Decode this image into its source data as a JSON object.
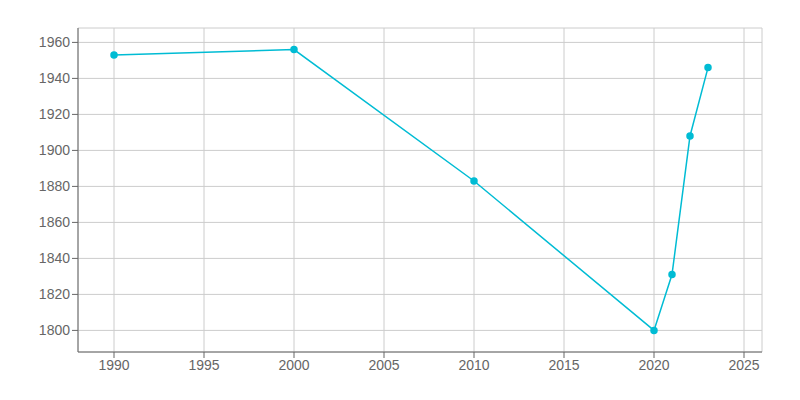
{
  "chart_data": {
    "type": "line",
    "x": [
      1990,
      2000,
      2010,
      2020,
      2021,
      2022,
      2023
    ],
    "values": [
      1953,
      1956,
      1883,
      1800,
      1831,
      1908,
      1946
    ],
    "color": "#00BCD4",
    "marker": "circle",
    "xlim": [
      1988,
      2026
    ],
    "ylim": [
      1788,
      1968
    ],
    "xticks": [
      1990,
      1995,
      2000,
      2005,
      2010,
      2015,
      2020,
      2025
    ],
    "yticks": [
      1800,
      1820,
      1840,
      1860,
      1880,
      1900,
      1920,
      1940,
      1960
    ],
    "grid": true
  }
}
